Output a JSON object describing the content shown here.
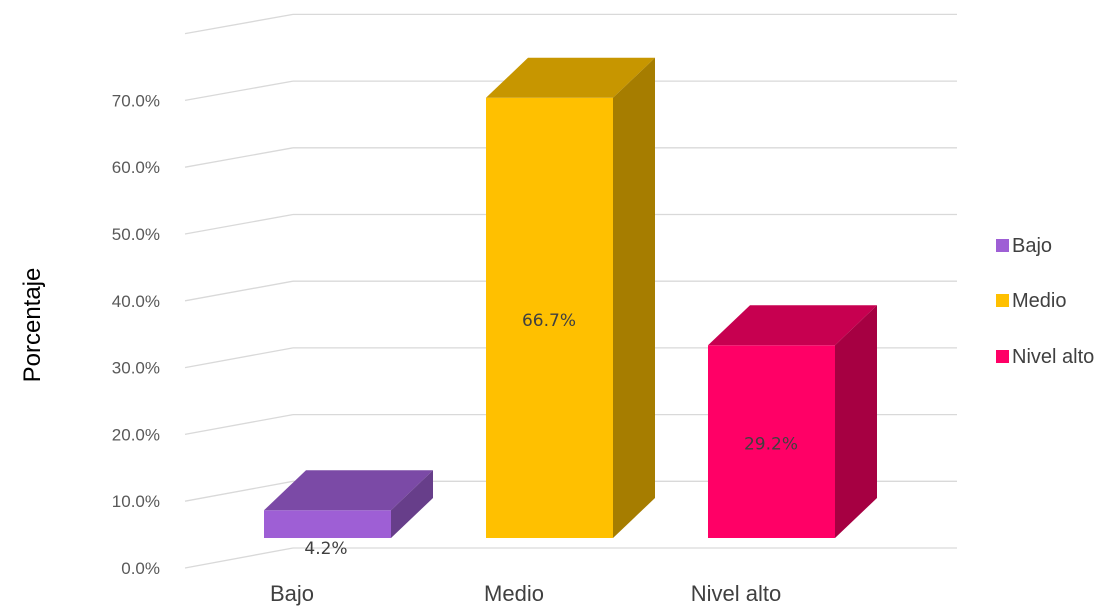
{
  "chart_data": {
    "type": "bar",
    "categories": [
      "Bajo",
      "Medio",
      "Nivel alto"
    ],
    "values": [
      4.2,
      66.7,
      29.2
    ],
    "data_labels": [
      "4.2%",
      "66.7%",
      "29.2%"
    ],
    "colors": [
      "#9e5fd5",
      "#ffc000",
      "#ff0066"
    ],
    "title": "",
    "xlabel": "",
    "ylabel": "Porcentaje",
    "ylim": [
      0,
      80
    ],
    "y_ticks": [
      0,
      10,
      20,
      30,
      40,
      50,
      60,
      70
    ],
    "y_tick_labels": [
      "0.0%",
      "10.0%",
      "20.0%",
      "30.0%",
      "40.0%",
      "50.0%",
      "60.0%",
      "70.0%"
    ],
    "grid": true,
    "style": "3d-column",
    "legend": {
      "position": "right",
      "entries": [
        "Bajo",
        "Medio",
        "Nivel alto"
      ]
    }
  }
}
